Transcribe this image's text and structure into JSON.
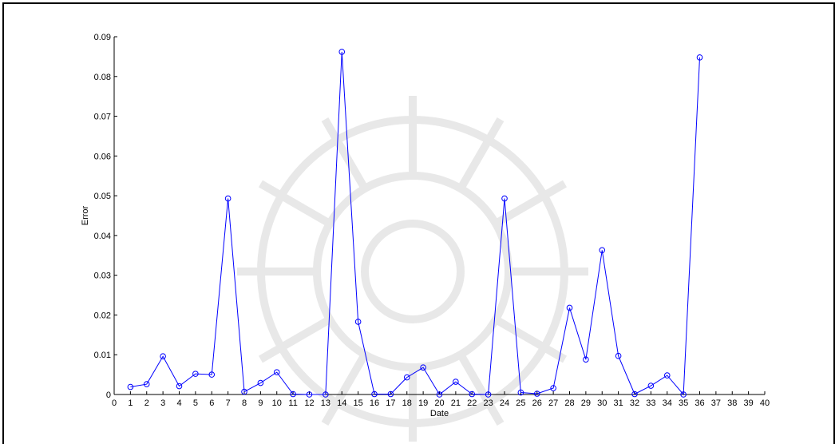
{
  "chart_data": {
    "type": "line",
    "title": "",
    "xlabel": "Date",
    "ylabel": "Error",
    "xlim": [
      0,
      40
    ],
    "ylim": [
      0,
      0.09
    ],
    "xticks": [
      0,
      1,
      2,
      3,
      4,
      5,
      6,
      7,
      8,
      9,
      10,
      11,
      12,
      13,
      14,
      15,
      16,
      17,
      18,
      19,
      20,
      21,
      22,
      23,
      24,
      25,
      26,
      27,
      28,
      29,
      30,
      31,
      32,
      33,
      34,
      35,
      36,
      37,
      38,
      39,
      40
    ],
    "yticks": [
      "0",
      "0.01",
      "0.02",
      "0.03",
      "0.04",
      "0.05",
      "0.06",
      "0.07",
      "0.08",
      "0.09"
    ],
    "grid": false,
    "series": [
      {
        "color": "#0000ff",
        "marker": "circle",
        "x": [
          1,
          2,
          3,
          4,
          5,
          6,
          7,
          8,
          9,
          10,
          11,
          12,
          13,
          14,
          15,
          16,
          17,
          18,
          19,
          20,
          21,
          22,
          23,
          24,
          25,
          26,
          27,
          28,
          29,
          30,
          31,
          32,
          33,
          34,
          35,
          36
        ],
        "y": [
          0.0019,
          0.0026,
          0.0096,
          0.0021,
          0.0052,
          0.005,
          0.0493,
          0.0007,
          0.0029,
          0.0056,
          0.0001,
          0.0,
          0.0,
          0.0862,
          0.0183,
          0.0001,
          0.0001,
          0.0043,
          0.0068,
          0.0,
          0.0032,
          0.0001,
          0.0,
          0.0493,
          0.0005,
          0.0002,
          0.0016,
          0.0218,
          0.0088,
          0.0363,
          0.0097,
          0.0001,
          0.0022,
          0.0048,
          0.0,
          0.0848
        ]
      }
    ]
  },
  "colors": {
    "axis": "#000000",
    "line": "#0000ff",
    "watermark": "#d8d8d8"
  }
}
